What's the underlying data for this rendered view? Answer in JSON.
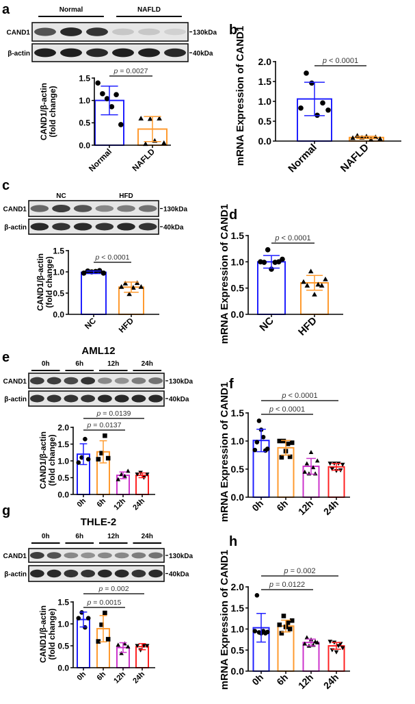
{
  "panels": {
    "a": {
      "letter": "a",
      "blot": {
        "groups": [
          "Normal",
          "NAFLD"
        ],
        "rows": [
          "CAND1",
          "β-actin"
        ],
        "markers": [
          "130kDa",
          "40kDa"
        ]
      }
    },
    "b": {
      "letter": "b"
    },
    "c": {
      "letter": "c",
      "blot": {
        "groups": [
          "NC",
          "HFD"
        ],
        "rows": [
          "CAND1",
          "β-actin"
        ],
        "markers": [
          "130kDa",
          "40kDa"
        ]
      }
    },
    "d": {
      "letter": "d"
    },
    "e": {
      "letter": "e",
      "title": "AML12",
      "blot": {
        "groups": [
          "0h",
          "6h",
          "12h",
          "24h"
        ],
        "rows": [
          "CAND1",
          "β-actin"
        ],
        "markers": [
          "130kDa",
          "40kDa"
        ]
      }
    },
    "f": {
      "letter": "f"
    },
    "g": {
      "letter": "g",
      "title": "THLE-2",
      "blot": {
        "groups": [
          "0h",
          "6h",
          "12h",
          "24h"
        ],
        "rows": [
          "CAND1",
          "β-actin"
        ],
        "markers": [
          "130kDa",
          "40kDa"
        ]
      }
    },
    "h": {
      "letter": "h"
    }
  },
  "colors": {
    "Normal": "#1f1fff",
    "NC": "#1f1fff",
    "0h": "#1f1fff",
    "NAFLD": "#ff9a2e",
    "HFD": "#ff9a2e",
    "6h": "#ff9a2e",
    "12h": "#cc33cc",
    "24h": "#ff2020"
  },
  "chart_data": [
    {
      "panel": "a",
      "type": "bar",
      "ylabel": "CAND1/β-actin (fold change)",
      "ylim": [
        0,
        1.5
      ],
      "yticks": [
        "0.0",
        "0.5",
        "1.0",
        "1.5"
      ],
      "categories": [
        "Normal",
        "NAFLD"
      ],
      "values": [
        1.0,
        0.36
      ],
      "sd": [
        0.32,
        0.28
      ],
      "markers": [
        "circle",
        "triangle"
      ],
      "points": [
        [
          1.39,
          1.15,
          1.04,
          0.86,
          1.13,
          0.46
        ],
        [
          0.6,
          0.03,
          0.59,
          0.1,
          0.6,
          0.05
        ]
      ],
      "comparisons": [
        {
          "from": "Normal",
          "to": "NAFLD",
          "label": "p = 0.0027"
        }
      ]
    },
    {
      "panel": "b",
      "type": "bar",
      "ylabel": "mRNA Expression of CAND1",
      "ylim": [
        0,
        2.0
      ],
      "yticks": [
        "0.0",
        "0.5",
        "1.0",
        "1.5",
        "2.0"
      ],
      "categories": [
        "Normal",
        "NAFLD"
      ],
      "values": [
        1.06,
        0.09
      ],
      "sd": [
        0.42,
        0.03
      ],
      "markers": [
        "circle",
        "triangle"
      ],
      "points": [
        [
          0.83,
          1.71,
          1.46,
          0.65,
          0.96,
          0.78
        ],
        [
          0.08,
          0.14,
          0.09,
          0.12,
          0.04,
          0.1,
          0.06
        ]
      ],
      "comparisons": [
        {
          "from": "Normal",
          "to": "NAFLD",
          "label": "p < 0.0001"
        }
      ]
    },
    {
      "panel": "c",
      "type": "bar",
      "ylabel": "CAND1/β-actin (fold change)",
      "ylim": [
        0,
        1.5
      ],
      "yticks": [
        "0.0",
        "0.5",
        "1.0",
        "1.5"
      ],
      "categories": [
        "NC",
        "HFD"
      ],
      "values": [
        0.99,
        0.64
      ],
      "sd": [
        0.03,
        0.12
      ],
      "markers": [
        "circle",
        "triangle"
      ],
      "points": [
        [
          0.97,
          1.02,
          1.0,
          1.01,
          1.03,
          0.97
        ],
        [
          0.65,
          0.73,
          0.48,
          0.63,
          0.74,
          0.65
        ]
      ],
      "comparisons": [
        {
          "from": "NC",
          "to": "HFD",
          "label": "p < 0.0001"
        }
      ]
    },
    {
      "panel": "d",
      "type": "bar",
      "ylabel": "mRNA Expression of CAND1",
      "ylim": [
        0,
        1.5
      ],
      "yticks": [
        "0.0",
        "0.5",
        "1.0",
        "1.5"
      ],
      "categories": [
        "NC",
        "HFD"
      ],
      "values": [
        1.0,
        0.6
      ],
      "sd": [
        0.12,
        0.14
      ],
      "markers": [
        "circle",
        "triangle"
      ],
      "points": [
        [
          1.0,
          0.99,
          1.23,
          0.86,
          0.99,
          1.0,
          1.05
        ],
        [
          0.62,
          0.55,
          0.82,
          0.38,
          0.57,
          0.55,
          0.67
        ]
      ],
      "comparisons": [
        {
          "from": "NC",
          "to": "HFD",
          "label": "p < 0.0001"
        }
      ]
    },
    {
      "panel": "e",
      "type": "bar",
      "ylabel": "CAND1/β-actin (fold change)",
      "ylim": [
        0,
        2.0
      ],
      "yticks": [
        "0.0",
        "0.5",
        "1.0",
        "1.5",
        "2.0"
      ],
      "categories": [
        "0h",
        "6h",
        "12h",
        "24h"
      ],
      "values": [
        1.2,
        1.27,
        0.57,
        0.57
      ],
      "sd": [
        0.31,
        0.33,
        0.1,
        0.07
      ],
      "markers": [
        "circle",
        "square",
        "triangle",
        "triangle-down"
      ],
      "points": [
        [
          0.95,
          1.1,
          1.65,
          1.05
        ],
        [
          1.05,
          1.23,
          1.75,
          1.08
        ],
        [
          0.45,
          0.6,
          0.55,
          0.7
        ],
        [
          0.6,
          0.65,
          0.5,
          0.6
        ]
      ],
      "comparisons": [
        {
          "from": "0h",
          "to": "12h",
          "label": "p = 0.0137"
        },
        {
          "from": "0h",
          "to": "24h",
          "label": "p = 0.0139"
        }
      ]
    },
    {
      "panel": "f",
      "type": "bar",
      "ylabel": "mRNA Expression of CAND1",
      "ylim": [
        0,
        1.5
      ],
      "yticks": [
        "0.0",
        "0.5",
        "1.0",
        "1.5"
      ],
      "categories": [
        "0h",
        "6h",
        "12h",
        "24h"
      ],
      "values": [
        1.01,
        0.88,
        0.55,
        0.54
      ],
      "sd": [
        0.2,
        0.13,
        0.14,
        0.06
      ],
      "markers": [
        "circle",
        "square",
        "triangle",
        "triangle-down"
      ],
      "points": [
        [
          0.84,
          0.98,
          1.36,
          1.2,
          1.07,
          0.83,
          0.86
        ],
        [
          1.0,
          0.71,
          1.0,
          0.82,
          0.95,
          0.72,
          0.97
        ],
        [
          0.45,
          0.6,
          0.42,
          0.8,
          0.53,
          0.42,
          0.65
        ],
        [
          0.6,
          0.5,
          0.6,
          0.47,
          0.6,
          0.48,
          0.58
        ]
      ],
      "comparisons": [
        {
          "from": "0h",
          "to": "12h",
          "label": "p < 0.0001"
        },
        {
          "from": "0h",
          "to": "24h",
          "label": "p < 0.0001"
        }
      ]
    },
    {
      "panel": "g",
      "type": "bar",
      "ylabel": "CAND1/β-actin (fold change)",
      "ylim": [
        0,
        1.5
      ],
      "yticks": [
        "0.0",
        "0.5",
        "1.0",
        "1.5"
      ],
      "categories": [
        "0h",
        "6h",
        "12h",
        "24h"
      ],
      "values": [
        1.1,
        0.89,
        0.46,
        0.48
      ],
      "sd": [
        0.17,
        0.3,
        0.11,
        0.07
      ],
      "markers": [
        "circle",
        "square",
        "triangle",
        "triangle-down"
      ],
      "points": [
        [
          1.13,
          1.26,
          0.92,
          1.13
        ],
        [
          0.6,
          0.98,
          1.25,
          0.65
        ],
        [
          0.52,
          0.33,
          0.55,
          0.48
        ],
        [
          0.5,
          0.4,
          0.5,
          0.5
        ]
      ],
      "comparisons": [
        {
          "from": "0h",
          "to": "12h",
          "label": "p = 0.0015"
        },
        {
          "from": "0h",
          "to": "24h",
          "label": "p = 0.002"
        }
      ]
    },
    {
      "panel": "h",
      "type": "bar",
      "ylabel": "mRNA Expression of CAND1",
      "ylim": [
        0,
        2.0
      ],
      "yticks": [
        "0.0",
        "0.5",
        "1.0",
        "1.5",
        "2.0"
      ],
      "categories": [
        "0h",
        "6h",
        "12h",
        "24h"
      ],
      "values": [
        1.03,
        1.07,
        0.68,
        0.6
      ],
      "sd": [
        0.34,
        0.14,
        0.08,
        0.08
      ],
      "markers": [
        "circle",
        "square",
        "triangle",
        "triangle-down"
      ],
      "points": [
        [
          0.95,
          1.8,
          0.92,
          0.9,
          0.95,
          0.9,
          0.93
        ],
        [
          1.1,
          0.9,
          1.31,
          1.05,
          1.15,
          1.0,
          1.2
        ],
        [
          0.65,
          0.8,
          0.6,
          0.75,
          0.62,
          0.7,
          0.68
        ],
        [
          0.7,
          0.5,
          0.68,
          0.45,
          0.6,
          0.65,
          0.55
        ]
      ],
      "comparisons": [
        {
          "from": "0h",
          "to": "12h",
          "label": "p = 0.0122"
        },
        {
          "from": "0h",
          "to": "24h",
          "label": "p = 0.002"
        }
      ]
    }
  ]
}
